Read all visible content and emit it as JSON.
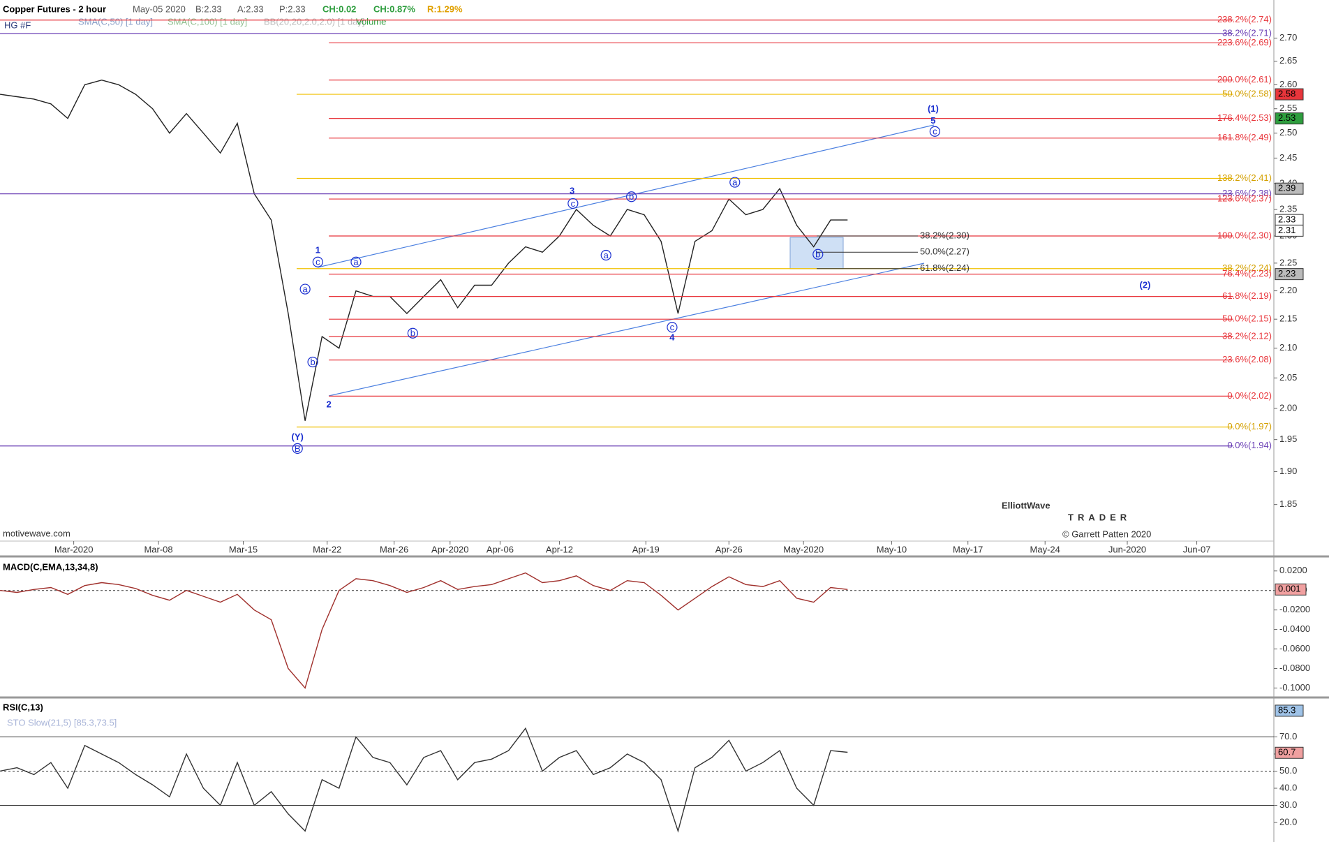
{
  "header": {
    "title": "Copper Futures - 2 hour",
    "date": "May-05 2020",
    "bid": "B:2.33",
    "ask": "A:2.33",
    "price": "P:2.33",
    "change": "CH:0.02",
    "change_pct": "CH:0.87%",
    "range": "R:1.29%",
    "symbol": "HG #F",
    "studies": [
      "SMA(C,50) [1 day]",
      "SMA(C,100) [1 day]",
      "BB(20,20,2.0,2.0) [1 day]",
      "Volume"
    ],
    "watermark": "motivewave.com",
    "logo": "ElliottWave",
    "logo_sub": "TRADER",
    "copyright": "© Garrett Patten 2020"
  },
  "chart_data": [
    {
      "type": "line",
      "name": "price",
      "log_scale": true,
      "color": "#222222",
      "ylim": [
        1.796,
        2.785
      ],
      "yticks": [
        1.85,
        {
          "value": 1.9,
          "label": "1.90"
        },
        1.95,
        {
          "value": 2.0,
          "label": "2.00"
        },
        2.05,
        {
          "value": 2.1,
          "label": "2.10"
        },
        2.15,
        {
          "value": 2.2,
          "label": "2.20"
        },
        2.25,
        {
          "value": 2.3,
          "label": "2.30"
        },
        2.35,
        {
          "value": 2.4,
          "label": "2.40"
        },
        2.45,
        {
          "value": 2.5,
          "label": "2.50"
        },
        2.55,
        {
          "value": 2.6,
          "label": "2.60"
        },
        2.65,
        {
          "value": 2.7,
          "label": "2.70"
        }
      ],
      "xticks": [
        "Mar-2020",
        "Mar-08",
        "Mar-15",
        "Mar-22",
        "Mar-26",
        "Apr-2020",
        "Apr-06",
        "Apr-12",
        "Apr-19",
        "Apr-26",
        "May-2020",
        "May-10",
        "May-17",
        "May-24",
        "Jun-2020",
        "Jun-07"
      ],
      "values": [
        2.58,
        2.575,
        2.57,
        2.56,
        2.53,
        2.6,
        2.61,
        2.6,
        2.58,
        2.55,
        2.5,
        2.54,
        2.5,
        2.46,
        2.52,
        2.38,
        2.33,
        2.16,
        1.98,
        2.12,
        2.1,
        2.2,
        2.19,
        2.19,
        2.16,
        2.19,
        2.22,
        2.17,
        2.21,
        2.21,
        2.25,
        2.28,
        2.27,
        2.3,
        2.35,
        2.32,
        2.3,
        2.35,
        2.34,
        2.29,
        2.16,
        2.29,
        2.31,
        2.37,
        2.34,
        2.35,
        2.39,
        2.32,
        2.28,
        2.33,
        2.33
      ],
      "fib_levels": [
        {
          "label": "238.2%(2.74)",
          "value": 2.74,
          "color": "#e8353b",
          "span": "full"
        },
        {
          "label": "38.2%(2.71)",
          "value": 2.71,
          "color": "#6a3fb5",
          "span": "full"
        },
        {
          "label": "223.6%(2.69)",
          "value": 2.69,
          "color": "#e8353b",
          "span": "red"
        },
        {
          "label": "200.0%(2.61)",
          "value": 2.61,
          "color": "#e8353b",
          "span": "red"
        },
        {
          "label": "50.0%(2.58)",
          "value": 2.58,
          "color": "#f0c000",
          "span": "gold"
        },
        {
          "label": "176.4%(2.53)",
          "value": 2.53,
          "color": "#e8353b",
          "span": "red"
        },
        {
          "label": "161.8%(2.49)",
          "value": 2.49,
          "color": "#e8353b",
          "span": "red"
        },
        {
          "label": "138.2%(2.41)",
          "value": 2.41,
          "color": "#f0c000",
          "span": "gold"
        },
        {
          "label": "23.6%(2.38)",
          "value": 2.38,
          "color": "#6a3fb5",
          "span": "full"
        },
        {
          "label": "123.6%(2.37)",
          "value": 2.37,
          "color": "#e8353b",
          "span": "red"
        },
        {
          "label": "100.0%(2.30)",
          "value": 2.3,
          "color": "#e8353b",
          "span": "red"
        },
        {
          "label": "38.2%(2.24)",
          "value": 2.24,
          "color": "#f0c000",
          "span": "gold"
        },
        {
          "label": "76.4%(2.23)",
          "value": 2.23,
          "color": "#e8353b",
          "span": "red"
        },
        {
          "label": "61.8%(2.19)",
          "value": 2.19,
          "color": "#e8353b",
          "span": "red"
        },
        {
          "label": "50.0%(2.15)",
          "value": 2.15,
          "color": "#e8353b",
          "span": "red"
        },
        {
          "label": "38.2%(2.12)",
          "value": 2.12,
          "color": "#e8353b",
          "span": "red"
        },
        {
          "label": "23.6%(2.08)",
          "value": 2.08,
          "color": "#e8353b",
          "span": "red"
        },
        {
          "label": "0.0%(2.02)",
          "value": 2.02,
          "color": "#e8353b",
          "span": "red"
        },
        {
          "label": "0.0%(1.97)",
          "value": 1.97,
          "color": "#f0c000",
          "span": "gold"
        },
        {
          "label": "0.0%(1.94)",
          "value": 1.94,
          "color": "#6a3fb5",
          "span": "full"
        }
      ],
      "retracements": [
        {
          "label": "38.2%(2.30)",
          "value": 2.3
        },
        {
          "label": "50.0%(2.27)",
          "value": 2.27
        },
        {
          "label": "61.8%(2.24)",
          "value": 2.24
        }
      ],
      "price_markers": [
        {
          "label": "2.58",
          "value": 2.58,
          "color": "#e8353b"
        },
        {
          "label": "2.53",
          "value": 2.53,
          "color": "#2e9e3e"
        },
        {
          "label": "2.39",
          "value": 2.39,
          "color": "#bbbbbb"
        },
        {
          "label": "2.33",
          "value": 2.33,
          "color": "#ffffff"
        },
        {
          "label": "2.31",
          "value": 2.31,
          "color": "#ffffff"
        },
        {
          "label": "2.23",
          "value": 2.23,
          "color": "#bbbbbb"
        }
      ],
      "wave_labels": [
        {
          "text": "(1)",
          "circled": false
        },
        {
          "text": "5",
          "circled": false
        },
        {
          "text": "c",
          "circled": true
        },
        {
          "text": "3",
          "circled": false
        },
        {
          "text": "c",
          "circled": true
        },
        {
          "text": "b",
          "circled": true
        },
        {
          "text": "a",
          "circled": true
        },
        {
          "text": "1",
          "circled": false
        },
        {
          "text": "c",
          "circled": true
        },
        {
          "text": "a",
          "circled": true
        },
        {
          "text": "a",
          "circled": true
        },
        {
          "text": "b",
          "circled": true
        },
        {
          "text": "2",
          "circled": false
        },
        {
          "text": "b",
          "circled": true
        },
        {
          "text": "a",
          "circled": true
        },
        {
          "text": "c",
          "circled": true
        },
        {
          "text": "4",
          "circled": false
        },
        {
          "text": "b",
          "circled": true
        },
        {
          "text": "(Y)",
          "circled": false
        },
        {
          "text": "B",
          "circled": true
        },
        {
          "text": "(2)",
          "circled": false
        }
      ]
    },
    {
      "type": "line",
      "name": "MACD(C,EMA,13,34,8)",
      "color": "#a0302c",
      "ylim": [
        -0.109,
        0.032
      ],
      "yticks": [
        {
          "value": 0.02,
          "label": "0.0200"
        },
        {
          "value": 0,
          "label": "0.0000"
        },
        {
          "value": -0.02,
          "label": "-0.0200"
        },
        {
          "value": -0.04,
          "label": "-0.0400"
        },
        {
          "value": -0.06,
          "label": "-0.0600"
        },
        {
          "value": -0.08,
          "label": "-0.0800"
        },
        {
          "value": -0.1,
          "label": "-0.1000"
        }
      ],
      "marker": {
        "label": "0.001",
        "value": 0.001
      },
      "values": [
        0,
        -0.002,
        0.001,
        0.003,
        -0.004,
        0.005,
        0.008,
        0.006,
        0.002,
        -0.005,
        -0.01,
        0,
        -0.006,
        -0.012,
        -0.004,
        -0.02,
        -0.03,
        -0.08,
        -0.1,
        -0.04,
        0,
        0.012,
        0.01,
        0.005,
        -0.002,
        0.003,
        0.01,
        0.001,
        0.004,
        0.006,
        0.012,
        0.018,
        0.008,
        0.01,
        0.015,
        0.005,
        0,
        0.01,
        0.008,
        -0.005,
        -0.02,
        -0.008,
        0.004,
        0.014,
        0.006,
        0.004,
        0.01,
        -0.008,
        -0.012,
        0.003,
        0.001
      ]
    },
    {
      "type": "line",
      "name": "RSI(C,13)",
      "subtitle": "STO Slow(21,5) [85.3,73.5]",
      "color": "#333333",
      "ylim": [
        8.6,
        91.8
      ],
      "yticks": [
        {
          "value": 20,
          "label": "20.0"
        },
        {
          "value": 30,
          "label": "30.0"
        },
        {
          "value": 40,
          "label": "40.0"
        },
        {
          "value": 50,
          "label": "50.0"
        },
        {
          "value": 60,
          "label": "60.0"
        },
        {
          "value": 70,
          "label": "70.0"
        }
      ],
      "markers": [
        {
          "label": "85.3",
          "value": 85.3,
          "color": "#9fc3e8"
        },
        {
          "label": "60.7",
          "value": 60.7,
          "color": "#f0a0a0"
        }
      ],
      "values": [
        50,
        52,
        48,
        55,
        40,
        65,
        60,
        55,
        48,
        42,
        35,
        60,
        40,
        30,
        55,
        30,
        38,
        25,
        15,
        45,
        40,
        70,
        58,
        55,
        42,
        58,
        62,
        45,
        55,
        57,
        62,
        75,
        50,
        58,
        62,
        48,
        52,
        60,
        55,
        45,
        15,
        52,
        58,
        68,
        50,
        55,
        62,
        40,
        30,
        62,
        61
      ]
    }
  ]
}
